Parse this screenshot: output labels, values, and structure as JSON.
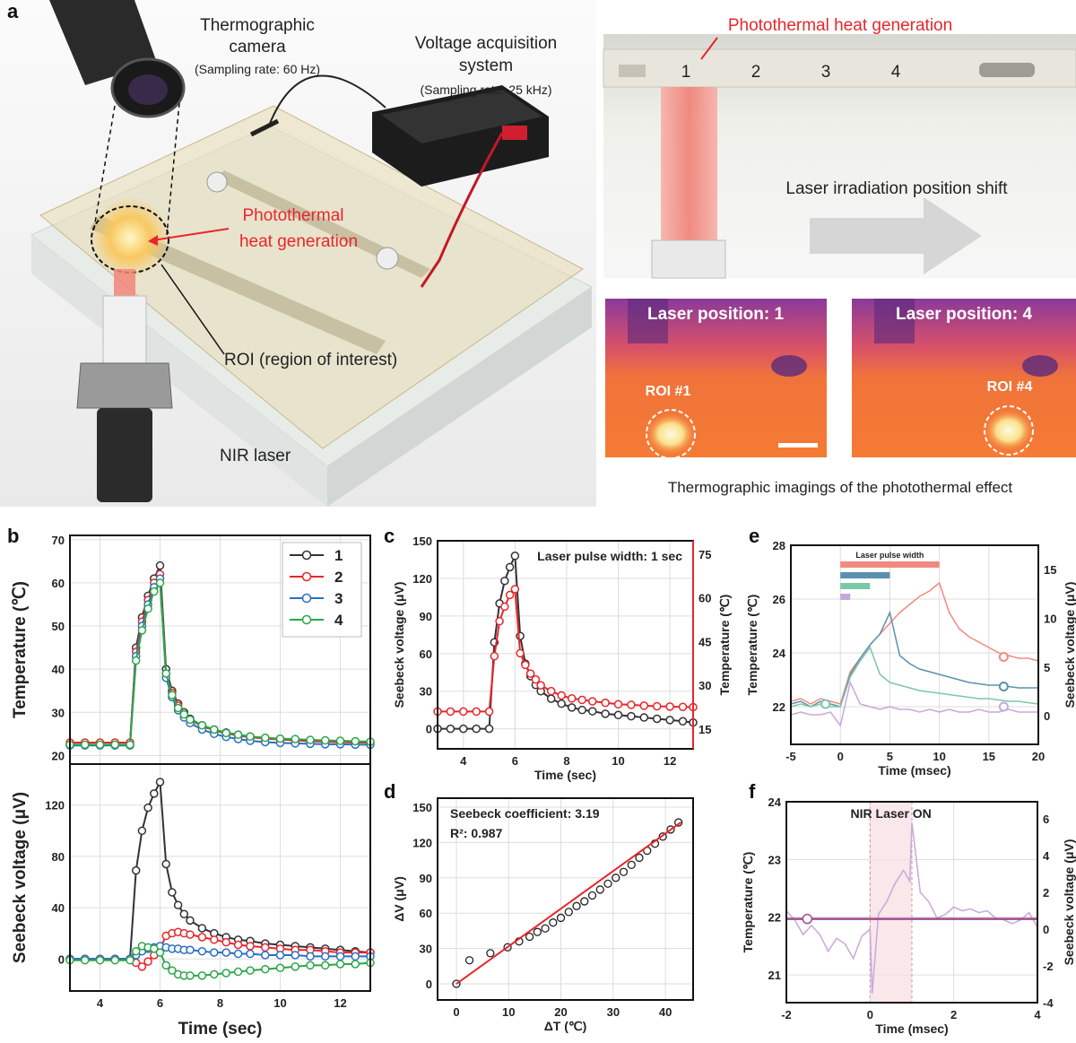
{
  "panel_labels": {
    "a": "a",
    "b": "b",
    "c": "c",
    "d": "d",
    "e": "e",
    "f": "f"
  },
  "panel_a": {
    "camera_label_1": "Thermographic",
    "camera_label_2": "camera",
    "camera_rate": "(Sampling rate: 60 Hz)",
    "voltage_label_1": "Voltage acquisition",
    "voltage_label_2": "system",
    "voltage_rate": "(Sampling rate: 25 kHz)",
    "photothermal_1": "Photothermal",
    "photothermal_2": "heat generation",
    "roi_label": "ROI (region of interest)",
    "laser_label": "NIR laser",
    "right_top_title": "Photothermal heat generation",
    "positions": [
      "1",
      "2",
      "3",
      "4"
    ],
    "shift_label": "Laser irradiation position shift",
    "thermal_1_title": "Laser position: 1",
    "thermal_1_roi": "ROI #1",
    "thermal_4_title": "Laser position: 4",
    "thermal_4_roi": "ROI #4",
    "thermal_caption": "Thermographic imagings of the photothermal effect",
    "highlight_color": "#e8262b"
  },
  "chart_data": [
    {
      "id": "b_top",
      "type": "line",
      "xlabel": "",
      "ylabel": "Temperature (℃)",
      "xlim": [
        3,
        13
      ],
      "ylim": [
        18,
        71
      ],
      "xticks": [
        4,
        6,
        8,
        10,
        12
      ],
      "yticks": [
        20,
        30,
        40,
        50,
        60,
        70
      ],
      "grid": true,
      "legend": "top-right",
      "x": [
        3,
        3.5,
        4,
        4.5,
        5,
        5.2,
        5.4,
        5.6,
        5.8,
        6,
        6.2,
        6.4,
        6.6,
        6.8,
        7,
        7.4,
        7.8,
        8.2,
        8.6,
        9,
        9.5,
        10,
        10.5,
        11,
        11.5,
        12,
        12.5,
        13
      ],
      "series": [
        {
          "name": "1",
          "color": "#333333",
          "values": [
            22.5,
            22.5,
            22.5,
            22.5,
            22.5,
            45,
            52,
            57,
            61,
            64,
            40,
            35,
            32,
            30,
            28.5,
            27,
            26,
            25.3,
            24.8,
            24.4,
            24,
            23.8,
            23.6,
            23.4,
            23.3,
            23.2,
            23.1,
            23
          ]
        },
        {
          "name": "2",
          "color": "#e8262b",
          "values": [
            23,
            23,
            23,
            23,
            23,
            44,
            51,
            56,
            60,
            62,
            39,
            34.5,
            31.5,
            29.5,
            28.2,
            26.8,
            25.8,
            25.1,
            24.6,
            24.2,
            23.9,
            23.7,
            23.5,
            23.3,
            23.2,
            23.1,
            23,
            23
          ]
        },
        {
          "name": "3",
          "color": "#2a6fc0",
          "values": [
            22.3,
            22.3,
            22.3,
            22.3,
            22.3,
            43,
            50,
            55,
            59,
            61,
            38,
            33.5,
            30.5,
            28.8,
            27.5,
            26,
            25,
            24.3,
            23.8,
            23.4,
            23.1,
            22.9,
            22.8,
            22.7,
            22.6,
            22.6,
            22.5,
            22.5
          ]
        },
        {
          "name": "4",
          "color": "#2ca54a",
          "values": [
            22.5,
            22.5,
            22.5,
            22.5,
            22.5,
            42,
            49,
            54,
            58,
            60,
            39,
            34,
            31,
            29.5,
            28.3,
            27,
            26,
            25.2,
            24.8,
            24.4,
            24.1,
            23.9,
            23.8,
            23.6,
            23.5,
            23.4,
            23.3,
            23.2
          ]
        }
      ]
    },
    {
      "id": "b_bottom",
      "type": "line",
      "xlabel": "Time (sec)",
      "ylabel": "Seebeck voltage (μV)",
      "xlim": [
        3,
        13
      ],
      "ylim": [
        -25,
        152
      ],
      "xticks": [
        4,
        6,
        8,
        10,
        12
      ],
      "yticks": [
        0,
        40,
        80,
        120
      ],
      "grid": true,
      "x": [
        3,
        3.5,
        4,
        4.5,
        5,
        5.2,
        5.4,
        5.6,
        5.8,
        6,
        6.2,
        6.4,
        6.6,
        6.8,
        7,
        7.4,
        7.8,
        8.2,
        8.6,
        9,
        9.5,
        10,
        10.5,
        11,
        11.5,
        12,
        12.5,
        13
      ],
      "series": [
        {
          "name": "1",
          "color": "#333333",
          "values": [
            0,
            0,
            0,
            0,
            0,
            69,
            100,
            118,
            129,
            138,
            74,
            52,
            42,
            35,
            30,
            24,
            20,
            17,
            15,
            14,
            12,
            11,
            10,
            9,
            8,
            7,
            6,
            5
          ]
        },
        {
          "name": "2",
          "color": "#e8262b",
          "values": [
            0,
            0,
            0,
            0,
            0,
            -3,
            -6,
            -2,
            3,
            8,
            18,
            20,
            21,
            20,
            19,
            17,
            15,
            13,
            11,
            10,
            9,
            8,
            7,
            7,
            6,
            5,
            5,
            5
          ]
        },
        {
          "name": "3",
          "color": "#2a6fc0",
          "values": [
            0,
            0,
            0,
            0,
            0,
            3,
            6,
            8,
            9,
            10,
            9,
            8,
            8,
            7,
            7,
            6,
            5,
            5,
            4,
            4,
            3,
            3,
            3,
            2,
            2,
            2,
            2,
            2
          ]
        },
        {
          "name": "4",
          "color": "#2ca54a",
          "values": [
            -1,
            -1,
            -1,
            -1,
            -1,
            6,
            10,
            9,
            8,
            5,
            -5,
            -9,
            -12,
            -13,
            -13,
            -13,
            -12,
            -11,
            -10,
            -9,
            -8,
            -7,
            -6,
            -5,
            -5,
            -4,
            -4,
            -3
          ]
        }
      ]
    },
    {
      "id": "c",
      "type": "line",
      "annotation": "Laser pulse width: 1 sec",
      "xlabel": "Time (sec)",
      "ylabel": "Seebeck voltage (μV)",
      "ylabel_right": "Temperature (℃)",
      "xlim": [
        3,
        12.9
      ],
      "ylim": [
        -16,
        150
      ],
      "ylim_right": [
        8.2,
        79.6
      ],
      "xticks": [
        4,
        6,
        8,
        10,
        12
      ],
      "yticks": [
        0,
        30,
        60,
        90,
        120,
        150
      ],
      "yticks_right": [
        15,
        30,
        45,
        60,
        75
      ],
      "grid": true,
      "x": [
        3,
        3.5,
        4,
        4.5,
        5,
        5.2,
        5.4,
        5.6,
        5.8,
        6,
        6.2,
        6.4,
        6.6,
        6.8,
        7,
        7.4,
        7.8,
        8.2,
        8.6,
        9,
        9.5,
        10,
        10.5,
        11,
        11.5,
        12,
        12.5,
        12.9
      ],
      "series": [
        {
          "axis": "left",
          "color": "#333333",
          "values": [
            0,
            0,
            0,
            0,
            0,
            69,
            100,
            118,
            129,
            138,
            74,
            52,
            42,
            35,
            30,
            24,
            20,
            17,
            15,
            14,
            12,
            11,
            10,
            9,
            8,
            7,
            6,
            5
          ]
        },
        {
          "axis": "right",
          "color": "#e8262b",
          "values": [
            21,
            21,
            21,
            21,
            21,
            40,
            52,
            57,
            61,
            63,
            41,
            37,
            34,
            32,
            30,
            28,
            26.5,
            25.5,
            25,
            24.5,
            24,
            23.5,
            23.3,
            23,
            22.8,
            22.7,
            22.6,
            22.5
          ]
        }
      ]
    },
    {
      "id": "d",
      "type": "scatter",
      "annotation_1": "Seebeck coefficient: 3.19",
      "annotation_2": "R²: 0.987",
      "xlabel": "ΔT (℃)",
      "ylabel": "ΔV (μV)",
      "xlim": [
        -3.6,
        45.3
      ],
      "ylim": [
        -13.7,
        157.6
      ],
      "xticks": [
        0,
        10,
        20,
        30,
        40
      ],
      "yticks": [
        0,
        30,
        60,
        90,
        120,
        150
      ],
      "grid": true,
      "points": [
        [
          0,
          0
        ],
        [
          2.5,
          20
        ],
        [
          6.5,
          26
        ],
        [
          9.8,
          31
        ],
        [
          12,
          36
        ],
        [
          14,
          40
        ],
        [
          15.5,
          44
        ],
        [
          17,
          47
        ],
        [
          18.5,
          52
        ],
        [
          20,
          56
        ],
        [
          21.5,
          61
        ],
        [
          23,
          66
        ],
        [
          24.5,
          70
        ],
        [
          26,
          75
        ],
        [
          27.5,
          80
        ],
        [
          29,
          85
        ],
        [
          30.5,
          90
        ],
        [
          32,
          95
        ],
        [
          33.5,
          101
        ],
        [
          35,
          107
        ],
        [
          36.5,
          113
        ],
        [
          38,
          119
        ],
        [
          39.5,
          125
        ],
        [
          41,
          131
        ],
        [
          42.5,
          137
        ]
      ],
      "fit": {
        "slope": 3.19,
        "intercept": 0,
        "x_range": [
          0,
          43
        ],
        "color": "#e8262b"
      }
    },
    {
      "id": "e",
      "type": "line",
      "legend_title": "Laser pulse width",
      "xlabel": "Time (msec)",
      "ylabel": "Temperature (℃)",
      "ylabel_right": "Seebeck voltage (μV)",
      "xlim": [
        -5,
        20
      ],
      "ylim": [
        20.6,
        28
      ],
      "ylim_right": [
        -2.94,
        17.5
      ],
      "xticks": [
        -5,
        0,
        5,
        10,
        15,
        20
      ],
      "yticks": [
        22,
        24,
        26,
        28
      ],
      "yticks_right": [
        0,
        5,
        10,
        15
      ],
      "grid": true,
      "x": [
        -5,
        -4,
        -3,
        -2,
        -1,
        0,
        1,
        2,
        3,
        4,
        5,
        6,
        7,
        8,
        9,
        10,
        11,
        12,
        13,
        14,
        15,
        16,
        17,
        18,
        19,
        20
      ],
      "series": [
        {
          "pulse_ms": 10,
          "color": "#f08a80",
          "values": [
            22.2,
            22.3,
            22.1,
            22.3,
            22.2,
            22.1,
            23.3,
            23.8,
            24.3,
            24.7,
            25.1,
            25.5,
            25.8,
            26.1,
            26.3,
            26.6,
            25.5,
            24.9,
            24.6,
            24.4,
            24.2,
            24.0,
            23.9,
            23.8,
            23.8,
            23.7
          ],
          "marker": [
            16.5,
            23.85
          ]
        },
        {
          "pulse_ms": 5,
          "color": "#5b90b0",
          "values": [
            22.1,
            22.2,
            22.0,
            22.2,
            22.1,
            22.0,
            23.2,
            23.8,
            24.3,
            24.7,
            25.5,
            23.9,
            23.6,
            23.4,
            23.3,
            23.2,
            23.1,
            23.0,
            22.9,
            22.85,
            22.8,
            22.8,
            22.75,
            22.7,
            22.7,
            22.7
          ],
          "marker": [
            16.5,
            22.75
          ]
        },
        {
          "pulse_ms": 3,
          "color": "#7cc7a8",
          "values": [
            22.0,
            22.1,
            22.0,
            22.1,
            22.0,
            22.0,
            23.1,
            23.7,
            24.2,
            23.2,
            22.9,
            22.8,
            22.7,
            22.6,
            22.55,
            22.5,
            22.45,
            22.4,
            22.35,
            22.3,
            22.3,
            22.25,
            22.2,
            22.2,
            22.15,
            22.1
          ],
          "marker": [
            -1.5,
            22.1
          ]
        },
        {
          "pulse_ms": 1,
          "color": "#c8a8dc",
          "values": [
            21.7,
            21.8,
            21.7,
            21.7,
            21.8,
            21.3,
            22.9,
            22.1,
            22.0,
            21.9,
            22.0,
            21.9,
            21.9,
            21.8,
            21.9,
            21.8,
            21.9,
            21.8,
            21.8,
            21.9,
            21.8,
            21.8,
            21.9,
            21.8,
            21.8,
            21.8
          ],
          "marker": [
            16.5,
            22.0
          ]
        }
      ]
    },
    {
      "id": "f",
      "type": "line",
      "annotation": "NIR Laser ON",
      "laser_on": [
        0,
        1
      ],
      "xlabel": "Time (msec)",
      "ylabel": "Temperature (℃)",
      "ylabel_right": "Seebeck voltage (μV)",
      "xlim": [
        -2,
        4
      ],
      "ylim": [
        20.52,
        24
      ],
      "ylim_right": [
        -4,
        6.93
      ],
      "xticks": [
        -2,
        0,
        2,
        4
      ],
      "yticks": [
        21,
        22,
        23,
        24
      ],
      "yticks_right": [
        -4,
        -2,
        0,
        2,
        4,
        6
      ],
      "grid": true,
      "temperature": {
        "value": 21.97,
        "color": "#a04c8c",
        "marker": [
          -1.5,
          21.97
        ]
      },
      "voltage": {
        "color": "#c8a8dc",
        "x": [
          -2,
          -1.8,
          -1.6,
          -1.4,
          -1.2,
          -1,
          -0.8,
          -0.6,
          -0.4,
          -0.2,
          0,
          0.05,
          0.2,
          0.4,
          0.6,
          0.8,
          0.95,
          1.0,
          1.2,
          1.4,
          1.6,
          1.8,
          2,
          2.2,
          2.4,
          2.6,
          2.8,
          3,
          3.2,
          3.4,
          3.6,
          3.8,
          4
        ],
        "values": [
          1,
          0.5,
          -0.3,
          0.2,
          -0.3,
          -1.2,
          -0.5,
          -0.8,
          -1.6,
          -0.4,
          0,
          -3.5,
          0.8,
          1.5,
          2.5,
          3.2,
          2.6,
          5.8,
          2,
          1.5,
          0.6,
          0.8,
          1.2,
          1,
          1.1,
          0.9,
          1,
          0.6,
          0.5,
          0.3,
          0.5,
          0.9,
          0.1
        ]
      }
    }
  ]
}
